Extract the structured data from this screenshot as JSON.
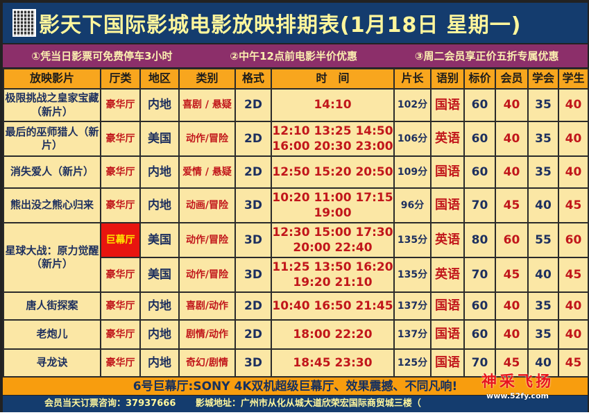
{
  "title": "影天下国际影城电影放映排期表(1月18日 星期一)",
  "promos": [
    "①凭当日影票可免费停车3小时",
    "②中午12点前电影半价优惠",
    "③周二会员享正价五折专属优惠"
  ],
  "headers": [
    "放映影片",
    "厅类",
    "地区",
    "类别",
    "格式",
    "时　间",
    "片长",
    "语别",
    "标价",
    "会员",
    "学会",
    "学生"
  ],
  "rows": [
    {
      "film": "极限挑战之皇家宝藏（新片）",
      "hall": "豪华厅",
      "region": "内地",
      "genre": "喜剧 / 悬疑",
      "format": "2D",
      "times": [
        "14:10"
      ],
      "length": "102分",
      "lang": "国语",
      "price": "60",
      "member": "40",
      "assoc": "35",
      "student": "40"
    },
    {
      "film": "最后的巫师猎人（新片）",
      "hall": "豪华厅",
      "region": "美国",
      "genre": "动作/冒险",
      "format": "2D",
      "times": [
        "12:10 13:25 14:50",
        "16:00 20:30 23:00"
      ],
      "length": "106分",
      "lang": "英语",
      "price": "60",
      "member": "40",
      "assoc": "35",
      "student": "40"
    },
    {
      "film": "消失爱人（新片）",
      "hall": "豪华厅",
      "region": "内地",
      "genre": "爱情 / 悬疑",
      "format": "2D",
      "times": [
        "12:50 15:20 20:50"
      ],
      "length": "109分",
      "lang": "国语",
      "price": "60",
      "member": "40",
      "assoc": "35",
      "student": "40"
    },
    {
      "film": "熊出没之熊心归来",
      "hall": "豪华厅",
      "region": "内地",
      "genre": "动画/冒险",
      "format": "3D",
      "times": [
        "10:20 11:00 17:15",
        "19:00"
      ],
      "length": "96分",
      "lang": "国语",
      "price": "70",
      "member": "45",
      "assoc": "40",
      "student": "45"
    },
    {
      "film": "星球大战：原力觉醒（新片）",
      "hall": "巨幕厅",
      "region": "美国",
      "genre": "动作/冒险",
      "format": "3D",
      "times": [
        "12:30 15:00 17:30",
        "20:00 22:40"
      ],
      "length": "135分",
      "lang": "英语",
      "price": "80",
      "member": "60",
      "assoc": "55",
      "student": "60"
    },
    {
      "film": "",
      "hall": "豪华厅",
      "region": "美国",
      "genre": "动作/冒险",
      "format": "3D",
      "times": [
        "11:25 13:50 16:20",
        "19:20 21:10"
      ],
      "length": "135分",
      "lang": "英语",
      "price": "70",
      "member": "45",
      "assoc": "40",
      "student": "45"
    },
    {
      "film": "唐人街探案",
      "hall": "豪华厅",
      "region": "内地",
      "genre": "喜剧/动作",
      "format": "2D",
      "times": [
        "10:40 16:50 21:45"
      ],
      "length": "137分",
      "lang": "国语",
      "price": "60",
      "member": "40",
      "assoc": "35",
      "student": "40"
    },
    {
      "film": "老炮儿",
      "hall": "豪华厅",
      "region": "内地",
      "genre": "剧情/动作",
      "format": "2D",
      "times": [
        "18:00 22:20"
      ],
      "length": "137分",
      "lang": "国语",
      "price": "60",
      "member": "40",
      "assoc": "35",
      "student": "40"
    },
    {
      "film": "寻龙诀",
      "hall": "豪华厅",
      "region": "内地",
      "genre": "奇幻/剧情",
      "format": "3D",
      "times": [
        "18:45 23:30"
      ],
      "length": "125分",
      "lang": "国语",
      "price": "70",
      "member": "45",
      "assoc": "40",
      "student": "45"
    }
  ],
  "band": "6号巨幕厅:SONY 4K双机超级巨幕厅、效果震撼、不同凡响!",
  "footer": {
    "phone": "会员当天订票咨询：37937666",
    "address": "影城地址：广州市从化从城大道欣荣宏国际商贸城三楼（"
  },
  "watermark": {
    "name": "神采飞扬",
    "url": "www.52fy.com"
  },
  "colors": {
    "title_bg": "#143c6e",
    "title_text": "#fff69c",
    "promo_bg": "#8c2f6a",
    "header_bg": "#f8a61e",
    "cell_bg": "#fbe7a5",
    "red": "#c1161b",
    "navy": "#1d2f5e",
    "giant_hall": "#e8150f"
  }
}
